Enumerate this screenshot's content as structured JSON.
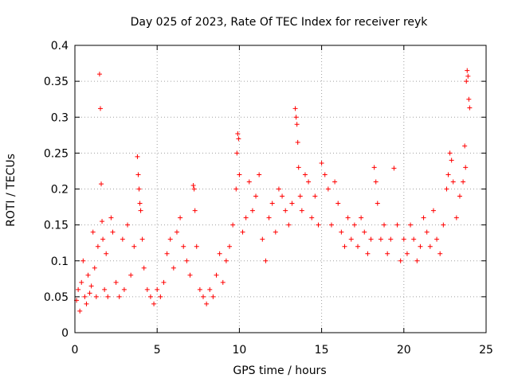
{
  "chart_data": {
    "type": "scatter",
    "title": "Day 025 of 2023, Rate Of TEC Index for receiver reyk",
    "xlabel": "GPS time / hours",
    "ylabel": "ROTI / TECUs",
    "xlim": [
      0,
      25
    ],
    "ylim": [
      0,
      0.4
    ],
    "xticks": [
      0,
      5,
      10,
      15,
      20,
      25
    ],
    "xtick_labels": [
      "0",
      "5",
      "10",
      "15",
      "20",
      "25"
    ],
    "yticks": [
      0,
      0.05,
      0.1,
      0.15,
      0.2,
      0.25,
      0.3,
      0.35,
      0.4
    ],
    "ytick_labels": [
      "0",
      "0.05",
      "0.1",
      "0.15",
      "0.2",
      "0.25",
      "0.3",
      "0.35",
      "0.4"
    ],
    "grid": true,
    "marker": "+",
    "color": "#ff0000",
    "series": [
      {
        "points": [
          [
            0.1,
            0.045
          ],
          [
            0.2,
            0.06
          ],
          [
            0.3,
            0.03
          ],
          [
            0.4,
            0.07
          ],
          [
            0.5,
            0.1
          ],
          [
            0.6,
            0.05
          ],
          [
            0.7,
            0.04
          ],
          [
            0.8,
            0.08
          ],
          [
            0.9,
            0.055
          ],
          [
            1.0,
            0.065
          ],
          [
            1.1,
            0.14
          ],
          [
            1.2,
            0.09
          ],
          [
            1.3,
            0.05
          ],
          [
            1.4,
            0.12
          ],
          [
            1.5,
            0.36
          ],
          [
            1.55,
            0.312
          ],
          [
            1.6,
            0.207
          ],
          [
            1.65,
            0.155
          ],
          [
            1.7,
            0.13
          ],
          [
            1.8,
            0.06
          ],
          [
            1.9,
            0.11
          ],
          [
            2.0,
            0.05
          ],
          [
            2.2,
            0.16
          ],
          [
            2.3,
            0.14
          ],
          [
            2.5,
            0.07
          ],
          [
            2.7,
            0.05
          ],
          [
            2.9,
            0.13
          ],
          [
            3.0,
            0.06
          ],
          [
            3.2,
            0.15
          ],
          [
            3.4,
            0.08
          ],
          [
            3.6,
            0.12
          ],
          [
            3.8,
            0.245
          ],
          [
            3.85,
            0.22
          ],
          [
            3.9,
            0.2
          ],
          [
            3.95,
            0.18
          ],
          [
            4.0,
            0.17
          ],
          [
            4.1,
            0.13
          ],
          [
            4.2,
            0.09
          ],
          [
            4.4,
            0.06
          ],
          [
            4.6,
            0.05
          ],
          [
            4.8,
            0.04
          ],
          [
            5.0,
            0.06
          ],
          [
            5.2,
            0.05
          ],
          [
            5.4,
            0.07
          ],
          [
            5.6,
            0.11
          ],
          [
            5.8,
            0.13
          ],
          [
            6.0,
            0.09
          ],
          [
            6.2,
            0.14
          ],
          [
            6.4,
            0.16
          ],
          [
            6.6,
            0.12
          ],
          [
            6.8,
            0.1
          ],
          [
            7.0,
            0.08
          ],
          [
            7.2,
            0.205
          ],
          [
            7.25,
            0.2
          ],
          [
            7.3,
            0.17
          ],
          [
            7.4,
            0.12
          ],
          [
            7.6,
            0.06
          ],
          [
            7.8,
            0.05
          ],
          [
            8.0,
            0.04
          ],
          [
            8.2,
            0.06
          ],
          [
            8.4,
            0.05
          ],
          [
            8.6,
            0.08
          ],
          [
            8.8,
            0.11
          ],
          [
            9.0,
            0.07
          ],
          [
            9.2,
            0.1
          ],
          [
            9.4,
            0.12
          ],
          [
            9.6,
            0.15
          ],
          [
            9.8,
            0.2
          ],
          [
            9.85,
            0.25
          ],
          [
            9.9,
            0.277
          ],
          [
            9.95,
            0.27
          ],
          [
            10.0,
            0.22
          ],
          [
            10.2,
            0.14
          ],
          [
            10.4,
            0.16
          ],
          [
            10.6,
            0.21
          ],
          [
            10.8,
            0.17
          ],
          [
            11.0,
            0.19
          ],
          [
            11.2,
            0.22
          ],
          [
            11.4,
            0.13
          ],
          [
            11.6,
            0.1
          ],
          [
            11.8,
            0.16
          ],
          [
            12.0,
            0.18
          ],
          [
            12.2,
            0.14
          ],
          [
            12.4,
            0.2
          ],
          [
            12.6,
            0.19
          ],
          [
            12.8,
            0.17
          ],
          [
            13.0,
            0.15
          ],
          [
            13.2,
            0.18
          ],
          [
            13.4,
            0.312
          ],
          [
            13.45,
            0.3
          ],
          [
            13.5,
            0.29
          ],
          [
            13.55,
            0.265
          ],
          [
            13.6,
            0.23
          ],
          [
            13.7,
            0.19
          ],
          [
            13.8,
            0.17
          ],
          [
            14.0,
            0.22
          ],
          [
            14.2,
            0.21
          ],
          [
            14.4,
            0.16
          ],
          [
            14.6,
            0.19
          ],
          [
            14.8,
            0.15
          ],
          [
            15.0,
            0.236
          ],
          [
            15.2,
            0.22
          ],
          [
            15.4,
            0.2
          ],
          [
            15.6,
            0.15
          ],
          [
            15.8,
            0.21
          ],
          [
            16.0,
            0.18
          ],
          [
            16.2,
            0.14
          ],
          [
            16.4,
            0.12
          ],
          [
            16.6,
            0.16
          ],
          [
            16.8,
            0.13
          ],
          [
            17.0,
            0.15
          ],
          [
            17.2,
            0.12
          ],
          [
            17.4,
            0.16
          ],
          [
            17.6,
            0.14
          ],
          [
            17.8,
            0.11
          ],
          [
            18.0,
            0.13
          ],
          [
            18.2,
            0.23
          ],
          [
            18.3,
            0.21
          ],
          [
            18.4,
            0.18
          ],
          [
            18.6,
            0.13
          ],
          [
            18.8,
            0.15
          ],
          [
            19.0,
            0.11
          ],
          [
            19.2,
            0.13
          ],
          [
            19.4,
            0.229
          ],
          [
            19.6,
            0.15
          ],
          [
            19.8,
            0.1
          ],
          [
            20.0,
            0.13
          ],
          [
            20.2,
            0.11
          ],
          [
            20.4,
            0.15
          ],
          [
            20.6,
            0.13
          ],
          [
            20.8,
            0.1
          ],
          [
            21.0,
            0.12
          ],
          [
            21.2,
            0.16
          ],
          [
            21.4,
            0.14
          ],
          [
            21.6,
            0.12
          ],
          [
            21.8,
            0.17
          ],
          [
            22.0,
            0.13
          ],
          [
            22.2,
            0.11
          ],
          [
            22.4,
            0.15
          ],
          [
            22.6,
            0.2
          ],
          [
            22.7,
            0.22
          ],
          [
            22.8,
            0.25
          ],
          [
            22.9,
            0.24
          ],
          [
            23.0,
            0.21
          ],
          [
            23.2,
            0.16
          ],
          [
            23.4,
            0.19
          ],
          [
            23.6,
            0.21
          ],
          [
            23.7,
            0.26
          ],
          [
            23.75,
            0.23
          ],
          [
            23.8,
            0.35
          ],
          [
            23.85,
            0.365
          ],
          [
            23.9,
            0.357
          ],
          [
            23.95,
            0.325
          ],
          [
            24.0,
            0.313
          ]
        ]
      }
    ]
  }
}
